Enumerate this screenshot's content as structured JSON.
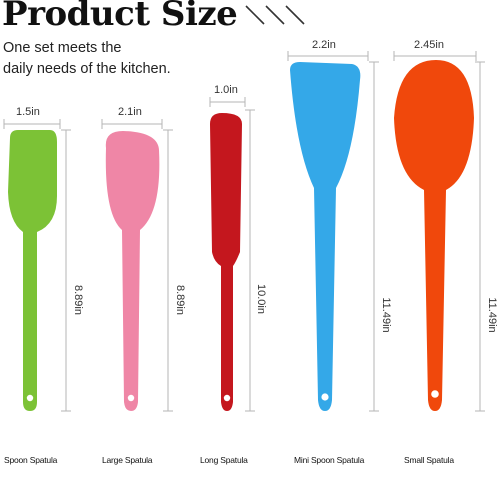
{
  "header": {
    "title": "Product Size",
    "tagline_line1": "One set meets the",
    "tagline_line2": "daily needs of the kitchen."
  },
  "products": [
    {
      "name": "Spoon Spatula",
      "width": "1.5in",
      "length": "8.89in",
      "color": "#7cc236"
    },
    {
      "name": "Large Spatula",
      "width": "2.1in",
      "length": "8.89in",
      "color": "#ef86a6"
    },
    {
      "name": "Long Spatula",
      "width": "1.0in",
      "length": "10.0in",
      "color": "#c4171e"
    },
    {
      "name": "Mini Spoon Spatula",
      "width": "2.2in",
      "length": "11.49in",
      "color": "#34a8e8"
    },
    {
      "name": "Small Spatula",
      "width": "2.45in",
      "length": "11.49in",
      "color": "#f0480c"
    }
  ],
  "colors": {
    "dimension_line": "#b5b5b5",
    "text": "#111111"
  }
}
